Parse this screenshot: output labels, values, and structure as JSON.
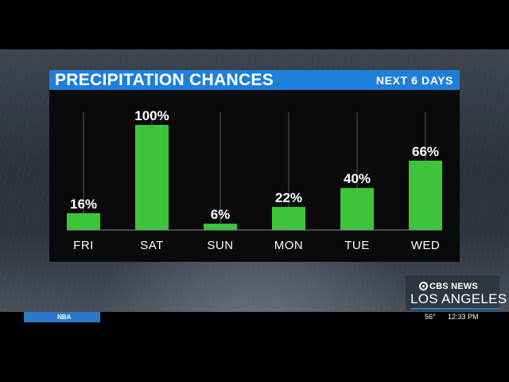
{
  "graphic": {
    "title": "PRECIPITATION CHANCES",
    "subtitle": "NEXT 6 DAYS"
  },
  "colors": {
    "header_blue": "#1f7fd8",
    "bar_green": "#3ec43a",
    "panel_bg": "#0a0a0b"
  },
  "chart_data": {
    "type": "bar",
    "title": "PRECIPITATION CHANCES",
    "subtitle": "NEXT 6 DAYS",
    "categories": [
      "FRI",
      "SAT",
      "SUN",
      "MON",
      "TUE",
      "WED"
    ],
    "values": [
      16,
      100,
      6,
      22,
      40,
      66
    ],
    "value_labels": [
      "16%",
      "100%",
      "6%",
      "22%",
      "40%",
      "66%"
    ],
    "unit": "%",
    "ylim": [
      0,
      100
    ],
    "grid": false,
    "legend": "none"
  },
  "station_bug": {
    "brand": "CBS NEWS",
    "city": "LOS ANGELES"
  },
  "ticker": {
    "tag": "NBA",
    "temperature": "56°",
    "time": "12:33 PM"
  }
}
